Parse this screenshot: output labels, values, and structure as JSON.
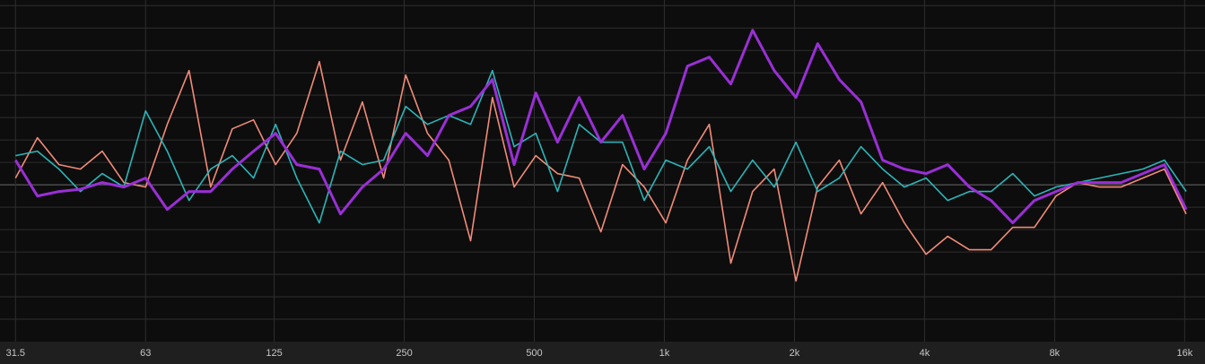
{
  "chart_data": {
    "type": "line",
    "x": [
      31.5,
      35.4,
      39.7,
      44.5,
      50,
      56.1,
      63,
      70.7,
      79.4,
      89.1,
      100,
      112,
      126,
      141,
      159,
      178,
      200,
      224,
      252,
      283,
      317,
      356,
      400,
      449,
      504,
      566,
      635,
      713,
      800,
      898,
      1008,
      1131,
      1270,
      1425,
      1600,
      1796,
      2016,
      2263,
      2540,
      2851,
      3200,
      3592,
      4032,
      4525,
      5080,
      5702,
      6400,
      7184,
      8063,
      9051,
      10159,
      11404,
      12800,
      14368,
      16127
    ],
    "series": [
      {
        "color": "#f28b78",
        "values": [
          0.6,
          4.2,
          1.8,
          1.4,
          3,
          0.2,
          -0.2,
          5.4,
          10.2,
          -0.2,
          5,
          5.8,
          1.8,
          4.6,
          11,
          2.2,
          7.4,
          0.6,
          9.8,
          4.6,
          2.2,
          -5,
          7.8,
          -0.2,
          2.6,
          1,
          0.6,
          -4.2,
          1.8,
          -0.2,
          -3.4,
          2.2,
          5.4,
          -7,
          -0.6,
          1.4,
          -8.6,
          -0.2,
          2.2,
          -2.6,
          0.2,
          -3.4,
          -6.2,
          -4.6,
          -5.8,
          -5.8,
          -3.8,
          -3.8,
          -1,
          0.2,
          -0.2,
          -0.2,
          0.6,
          1.4,
          -2.6
        ],
        "width": 1.6
      },
      {
        "color": "#2bb5b8",
        "values": [
          2.6,
          3,
          1.4,
          -0.6,
          1,
          -0.2,
          6.6,
          3,
          -1.4,
          1.4,
          2.6,
          0.6,
          5.4,
          0.6,
          -3.4,
          3,
          1.8,
          2.2,
          7,
          5.4,
          6.2,
          5.4,
          10.2,
          3.4,
          4.6,
          -0.6,
          5.4,
          3.8,
          3.8,
          -1.4,
          2.2,
          1.4,
          3.4,
          -0.6,
          2.2,
          -0.2,
          3.8,
          -0.6,
          0.6,
          3.4,
          1.4,
          -0.2,
          0.6,
          -1.4,
          -0.6,
          -0.6,
          1,
          -1,
          -0.2,
          0.2,
          0.6,
          1,
          1.4,
          2.2,
          -0.6
        ],
        "width": 1.6
      },
      {
        "color": "#9a2fd6",
        "values": [
          2.2,
          -1,
          -0.6,
          -0.4,
          0.2,
          -0.2,
          0.6,
          -2.2,
          -0.6,
          -0.6,
          1.4,
          3,
          4.6,
          1.8,
          1.4,
          -2.6,
          -0.2,
          1.4,
          4.6,
          2.6,
          6.2,
          7,
          9.4,
          1.8,
          8.2,
          3.8,
          7.8,
          3.8,
          6.2,
          1.4,
          4.6,
          10.6,
          11.4,
          9,
          13.8,
          10.2,
          7.8,
          12.6,
          9.4,
          7.4,
          2.2,
          1.4,
          1,
          1.8,
          -0.2,
          -1.4,
          -3.4,
          -1.4,
          -0.6,
          0.2,
          0.2,
          0.2,
          1,
          1.8,
          -2.2
        ],
        "width": 3
      }
    ],
    "xscale": "log",
    "xlim": [
      29,
      17830
    ],
    "xticks": [
      31.5,
      63,
      125,
      250,
      500,
      {
        "value": 1000,
        "label": "1k"
      },
      {
        "value": 2000,
        "label": "2k"
      },
      {
        "value": 4000,
        "label": "4k"
      },
      {
        "value": 8000,
        "label": "8k"
      },
      {
        "value": 16000,
        "label": "16k"
      }
    ],
    "ylim": [
      -14,
      16.5
    ],
    "ygrid": [
      -12,
      -10,
      -8,
      -6,
      -4,
      -2,
      0,
      2,
      4,
      6,
      8,
      10,
      12,
      14,
      16
    ],
    "grid": true
  }
}
